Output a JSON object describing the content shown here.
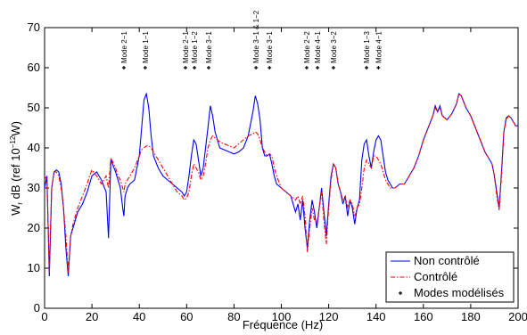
{
  "chart_data": {
    "type": "line",
    "xlabel": "Fréquence (Hz)",
    "ylabel": {
      "main": "W",
      "sub": "r",
      "mid": " dB (ref 10",
      "sup": "−12",
      "end": "W)"
    },
    "xlim": [
      0,
      200
    ],
    "xticks": [
      0,
      20,
      40,
      60,
      80,
      100,
      120,
      140,
      160,
      180,
      200
    ],
    "ylim": [
      0,
      70
    ],
    "yticks": [
      0,
      10,
      20,
      30,
      40,
      50,
      60,
      70
    ],
    "grid": false,
    "legend": "lower right",
    "x": [
      0,
      1,
      2,
      3,
      4,
      5,
      6,
      7,
      8,
      9,
      10,
      11,
      12,
      13,
      14,
      16,
      18,
      19,
      20,
      22,
      24,
      26,
      27,
      28,
      30,
      31,
      32,
      33,
      33.5,
      34,
      35,
      36,
      38,
      40,
      41,
      42,
      43,
      44,
      45,
      46,
      48,
      50,
      52,
      54,
      56,
      58,
      59,
      60,
      61,
      62,
      63,
      64,
      65,
      66,
      67,
      68,
      69,
      70,
      71,
      72,
      73,
      74,
      76,
      78,
      80,
      82,
      84,
      86,
      88,
      89,
      90,
      91,
      92,
      93,
      94,
      95,
      96,
      97,
      98,
      100,
      102,
      104,
      106,
      107,
      108,
      109,
      110,
      111,
      112,
      113,
      114,
      115,
      116,
      117,
      118,
      119,
      120,
      121,
      122,
      123,
      124,
      125,
      126,
      127,
      128,
      129,
      130,
      131,
      132,
      133,
      134,
      135,
      136,
      137,
      138,
      139,
      140,
      141,
      142,
      143,
      144,
      145,
      146,
      147,
      148,
      150,
      152,
      154,
      156,
      158,
      160,
      162,
      164,
      165,
      166,
      167,
      168,
      170,
      172,
      174,
      175,
      176,
      178,
      180,
      182,
      184,
      186,
      188,
      189,
      190,
      191,
      192,
      193,
      194,
      195,
      196,
      197,
      198,
      199,
      200
    ],
    "series": [
      {
        "name": "Non contrôlé",
        "color": "#0000ff",
        "dash": "solid",
        "values": [
          30,
          33,
          8,
          30,
          34,
          34.5,
          34,
          31,
          25,
          15,
          8,
          18,
          20,
          22,
          24,
          26,
          29,
          31,
          33,
          34,
          32,
          29,
          17.5,
          37,
          34,
          32,
          30,
          25,
          23,
          28,
          30,
          31,
          32,
          38,
          45,
          52,
          53.5,
          50,
          43,
          38,
          35,
          33,
          32,
          31,
          30,
          29,
          28,
          29,
          33,
          38,
          42,
          41,
          37,
          33,
          35,
          40,
          45,
          50.5,
          48,
          44,
          42,
          40,
          39.5,
          39,
          38.5,
          39,
          40,
          43,
          49,
          53,
          51,
          47,
          40,
          38,
          38,
          38.5,
          36,
          33,
          31,
          30,
          29,
          28,
          24,
          26,
          22,
          27,
          20,
          15,
          22,
          27,
          24,
          20,
          25,
          30,
          24,
          18,
          26,
          33,
          36,
          35,
          31,
          29,
          26,
          28,
          23,
          27,
          25,
          21,
          25,
          27,
          37,
          41,
          42,
          38,
          35,
          39,
          42,
          43,
          42,
          38,
          34,
          32,
          31,
          30,
          30,
          31,
          31,
          33,
          35,
          38,
          42,
          45,
          48,
          50.5,
          49,
          50.5,
          48,
          47,
          48.5,
          51,
          53.5,
          53,
          50,
          48,
          45,
          42,
          39,
          37,
          36,
          33,
          29,
          25,
          34,
          44,
          47.5,
          48,
          47.5,
          46.5,
          45.5,
          45.5
        ]
      },
      {
        "name": "Contrôlé",
        "color": "#ff0000",
        "dash": "dashdot",
        "values": [
          33,
          32,
          9,
          30,
          34,
          34,
          33,
          30,
          25,
          18,
          9,
          18,
          21,
          23,
          25,
          28,
          31,
          33,
          34.5,
          33,
          31,
          33,
          30,
          37.5,
          35,
          33,
          32,
          30,
          29,
          31,
          32,
          33,
          35,
          38,
          39.5,
          40,
          40.5,
          40.5,
          40,
          39,
          37,
          35,
          33,
          31,
          29,
          28,
          27,
          27.5,
          29,
          33,
          36,
          35,
          34,
          32,
          33,
          36,
          40,
          42,
          43,
          42.5,
          42,
          41.5,
          41,
          40.5,
          40,
          41,
          42,
          43,
          43.5,
          44,
          43.5,
          42,
          40,
          39,
          38,
          38.5,
          38,
          35,
          33,
          30,
          29,
          28,
          27,
          28,
          26,
          28,
          23,
          14,
          20,
          25,
          22,
          21,
          25,
          29,
          22,
          16,
          25,
          32,
          36,
          35,
          31,
          29,
          27,
          28,
          25,
          27,
          26,
          23,
          25,
          26,
          30,
          35,
          37,
          36,
          35,
          38,
          38,
          37,
          36,
          34,
          32,
          31,
          30,
          30,
          30,
          31,
          31,
          33,
          35,
          38,
          42,
          45,
          48,
          50,
          49,
          50,
          48,
          47,
          48.5,
          51,
          53.5,
          53,
          50,
          48,
          45,
          42,
          39,
          37,
          36,
          33,
          28,
          24.5,
          33,
          44,
          47,
          48,
          47.5,
          46.5,
          45.5,
          45.5
        ]
      }
    ],
    "modes": {
      "name": "Modes modélisés",
      "color": "#000000",
      "x": [
        33.5,
        42.5,
        59.5,
        63.3,
        69.3,
        89.3,
        95,
        110.7,
        115.3,
        122,
        136,
        141
      ],
      "values": [
        60,
        60,
        60,
        60,
        60,
        60,
        60,
        60,
        60,
        60,
        60,
        60
      ],
      "labels": [
        "Mode 2−1",
        "Mode 1−1",
        "Mode 2−1",
        "Mode 1−2",
        "Mode 3−1",
        "Mode 3−1 & 1−2",
        "Mode 3−1",
        "Mode 2−2",
        "Mode 4−1",
        "Mode 3−2",
        "Mode 1−3",
        "Mode 4−1"
      ]
    }
  }
}
